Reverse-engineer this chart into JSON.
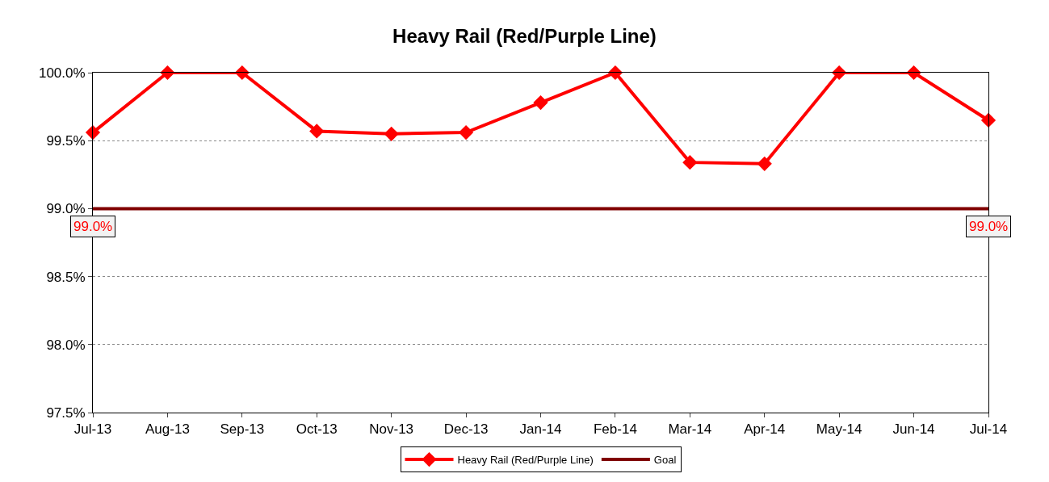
{
  "chart_data": {
    "type": "line",
    "title": "Heavy Rail (Red/Purple Line)",
    "categories": [
      "Jul-13",
      "Aug-13",
      "Sep-13",
      "Oct-13",
      "Nov-13",
      "Dec-13",
      "Jan-14",
      "Feb-14",
      "Mar-14",
      "Apr-14",
      "May-14",
      "Jun-14",
      "Jul-14"
    ],
    "series": [
      {
        "name": "Heavy Rail (Red/Purple Line)",
        "color": "#ff0000",
        "marker": "diamond",
        "values": [
          99.56,
          100,
          100,
          99.57,
          99.55,
          99.56,
          99.78,
          100,
          99.34,
          99.33,
          100,
          100,
          99.65
        ]
      },
      {
        "name": "Goal",
        "color": "#800000",
        "marker": "none",
        "values": [
          99,
          99,
          99,
          99,
          99,
          99,
          99,
          99,
          99,
          99,
          99,
          99,
          99
        ],
        "value_labels": [
          "99.0%",
          null,
          null,
          null,
          null,
          null,
          null,
          null,
          null,
          null,
          null,
          null,
          "99.0%"
        ]
      }
    ],
    "ylim": [
      97.5,
      100
    ],
    "yticks": [
      {
        "value": 97.5,
        "label": "97.5%"
      },
      {
        "value": 98,
        "label": "98.0%"
      },
      {
        "value": 98.5,
        "label": "98.5%"
      },
      {
        "value": 99,
        "label": "99.0%"
      },
      {
        "value": 99.5,
        "label": "99.5%"
      },
      {
        "value": 100,
        "label": "100.0%"
      }
    ],
    "grid": "y",
    "legend": "bottom",
    "line_style": "solid"
  }
}
